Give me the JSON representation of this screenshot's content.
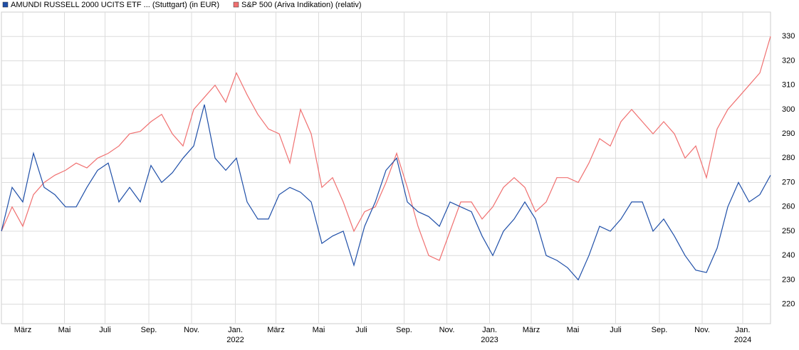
{
  "chart_data": {
    "type": "line",
    "series": [
      {
        "name": "AMUNDI RUSSELL 2000 UCITS ETF ... (Stuttgart) (in EUR)",
        "color": "#1f4fa8",
        "values": [
          250,
          268,
          262,
          282,
          268,
          265,
          260,
          260,
          268,
          275,
          278,
          262,
          268,
          262,
          277,
          270,
          274,
          280,
          285,
          302,
          280,
          275,
          280,
          262,
          255,
          255,
          265,
          268,
          266,
          262,
          245,
          248,
          250,
          236,
          252,
          262,
          275,
          280,
          262,
          258,
          256,
          252,
          262,
          260,
          258,
          248,
          240,
          250,
          255,
          262,
          255,
          240,
          238,
          235,
          230,
          240,
          252,
          250,
          255,
          262,
          262,
          250,
          255,
          248,
          240,
          234,
          233,
          243,
          260,
          270,
          262,
          265,
          273
        ]
      },
      {
        "name": "S&P 500 (Ariva Indikation) (relativ)",
        "color": "#f07070",
        "values": [
          250,
          260,
          252,
          265,
          270,
          273,
          275,
          278,
          276,
          280,
          282,
          285,
          290,
          291,
          295,
          298,
          290,
          285,
          300,
          305,
          310,
          303,
          315,
          306,
          298,
          292,
          290,
          278,
          300,
          290,
          268,
          272,
          262,
          250,
          258,
          260,
          270,
          282,
          268,
          252,
          240,
          238,
          250,
          262,
          262,
          255,
          260,
          268,
          272,
          268,
          258,
          262,
          272,
          272,
          270,
          278,
          288,
          285,
          295,
          300,
          295,
          290,
          295,
          290,
          280,
          285,
          272,
          292,
          300,
          305,
          310,
          315,
          330
        ]
      }
    ],
    "xlim": [
      0,
      72
    ],
    "xticks": [
      {
        "value": 2,
        "label": "März"
      },
      {
        "value": 5.9,
        "label": "Mai"
      },
      {
        "value": 9.7,
        "label": "Juli"
      },
      {
        "value": 13.8,
        "label": "Sep."
      },
      {
        "value": 17.8,
        "label": "Nov."
      },
      {
        "value": 21.9,
        "label": "Jan."
      },
      {
        "value": 25.7,
        "label": "März"
      },
      {
        "value": 29.7,
        "label": "Mai"
      },
      {
        "value": 33.7,
        "label": "Juli"
      },
      {
        "value": 37.7,
        "label": "Sep."
      },
      {
        "value": 41.7,
        "label": "Nov."
      },
      {
        "value": 45.7,
        "label": "Jan."
      },
      {
        "value": 49.6,
        "label": "März"
      },
      {
        "value": 53.5,
        "label": "Mai"
      },
      {
        "value": 57.5,
        "label": "Juli"
      },
      {
        "value": 61.6,
        "label": "Sep."
      },
      {
        "value": 65.6,
        "label": "Nov."
      },
      {
        "value": 69.4,
        "label": "Jan."
      }
    ],
    "year_labels": [
      {
        "value": 21.9,
        "label": "2022"
      },
      {
        "value": 45.7,
        "label": "2023"
      },
      {
        "value": 69.4,
        "label": "2024"
      }
    ],
    "ylim": [
      212,
      340
    ],
    "yticks": [
      220,
      230,
      240,
      250,
      260,
      270,
      280,
      290,
      300,
      310,
      320,
      330
    ],
    "grid": true
  }
}
